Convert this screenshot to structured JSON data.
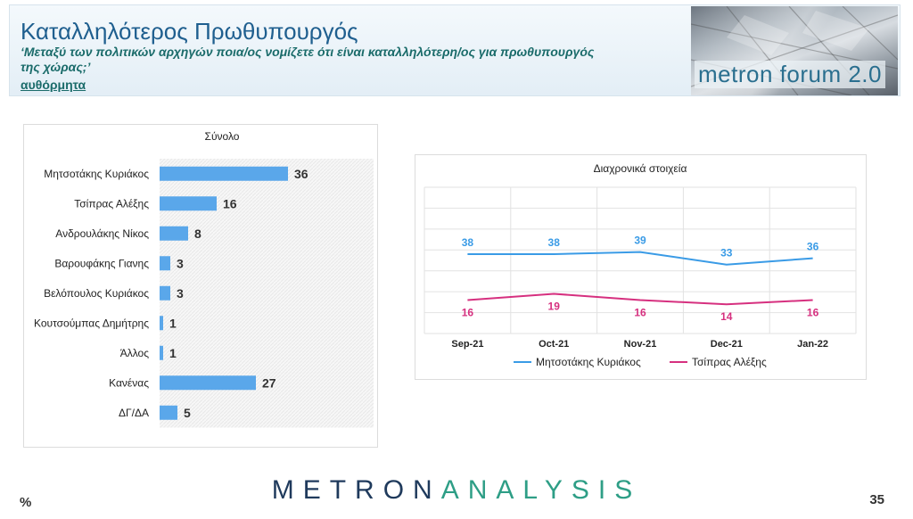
{
  "header": {
    "title": "Καταλληλότερος Πρωθυπουργός",
    "question": "‘Μεταξύ των πολιτικών αρχηγών ποια/ος νομίζετε ότι είναι καταλληλότερη/ος για πρωθυπουργός της χώρας;’",
    "subtitle": "αυθόρμητα",
    "forum_logo": "metron forum 2.0"
  },
  "footer": {
    "percent_sign": "%",
    "brand_part1": "METRON",
    "brand_part2": "ANALYSIS",
    "page_number": "35"
  },
  "colors": {
    "bar": "#5aa7ea",
    "series_a": "#3a9be6",
    "series_b": "#d6307f",
    "grid": "#e2e2e2"
  },
  "chart_data": [
    {
      "type": "bar",
      "orientation": "horizontal",
      "title": "Σύνολο",
      "categories": [
        "Μητσοτάκης Κυριάκος",
        "Τσίπρας Αλέξης",
        "Ανδρουλάκης Νίκος",
        "Βαρουφάκης Γιανης",
        "Βελόπουλος Κυριάκος",
        "Κουτσούμπας Δημήτρης",
        "Άλλος",
        "Κανένας",
        "ΔΓ/ΔΑ"
      ],
      "values": [
        36,
        16,
        8,
        3,
        3,
        1,
        1,
        27,
        5
      ],
      "xlim": [
        0,
        60
      ]
    },
    {
      "type": "line",
      "title": "Διαχρονικά στοιχεία",
      "x": [
        "Sep-21",
        "Oct-21",
        "Nov-21",
        "Dec-21",
        "Jan-22"
      ],
      "series": [
        {
          "name": "Μητσοτάκης Κυριάκος",
          "values": [
            38,
            38,
            39,
            33,
            36
          ]
        },
        {
          "name": "Τσίπρας Αλέξης",
          "values": [
            16,
            19,
            16,
            14,
            16
          ]
        }
      ],
      "legend": "bottom",
      "grid": true
    }
  ]
}
